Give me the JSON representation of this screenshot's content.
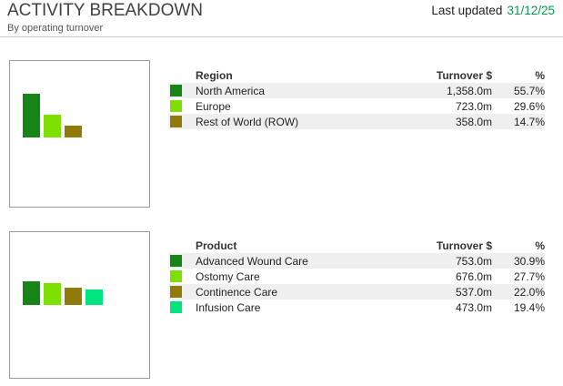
{
  "header": {
    "title": "ACTIVITY BREAKDOWN",
    "subtitle": "By operating turnover",
    "last_updated_label": "Last updated",
    "last_updated_date": "31/12/25",
    "date_color": "#009a49"
  },
  "sections": [
    {
      "table": {
        "col_name": "Region",
        "col_turnover": "Turnover $",
        "col_pct": "%",
        "rows": [
          {
            "name": "North America",
            "turnover": "1,358.0m",
            "pct": "55.7%",
            "color": "#178417"
          },
          {
            "name": "Europe",
            "turnover": "723.0m",
            "pct": "29.6%",
            "color": "#7de000"
          },
          {
            "name": "Rest of World (ROW)",
            "turnover": "358.0m",
            "pct": "14.7%",
            "color": "#8f7a0a"
          }
        ]
      }
    },
    {
      "table": {
        "col_name": "Product",
        "col_turnover": "Turnover $",
        "col_pct": "%",
        "rows": [
          {
            "name": "Advanced Wound Care",
            "turnover": "753.0m",
            "pct": "30.9%",
            "color": "#178417"
          },
          {
            "name": "Ostomy Care",
            "turnover": "676.0m",
            "pct": "27.7%",
            "color": "#7de000"
          },
          {
            "name": "Continence Care",
            "turnover": "537.0m",
            "pct": "22.0%",
            "color": "#8f7a0a"
          },
          {
            "name": "Infusion Care",
            "turnover": "473.0m",
            "pct": "19.4%",
            "color": "#00e57e"
          }
        ]
      }
    }
  ],
  "chart_data": [
    {
      "type": "bar",
      "title": "Region",
      "categories": [
        "North America",
        "Europe",
        "Rest of World (ROW)"
      ],
      "values": [
        1358.0,
        723.0,
        358.0
      ],
      "unit": "m",
      "percentages": [
        55.7,
        29.6,
        14.7
      ],
      "colors": [
        "#178417",
        "#7de000",
        "#8f7a0a"
      ],
      "grid": false,
      "legend_position": "table-right"
    },
    {
      "type": "bar",
      "title": "Product",
      "categories": [
        "Advanced Wound Care",
        "Ostomy Care",
        "Continence Care",
        "Infusion Care"
      ],
      "values": [
        753.0,
        676.0,
        537.0,
        473.0
      ],
      "unit": "m",
      "percentages": [
        30.9,
        27.7,
        22.0,
        19.4
      ],
      "colors": [
        "#178417",
        "#7de000",
        "#8f7a0a",
        "#00e57e"
      ],
      "grid": false,
      "legend_position": "table-right"
    }
  ]
}
